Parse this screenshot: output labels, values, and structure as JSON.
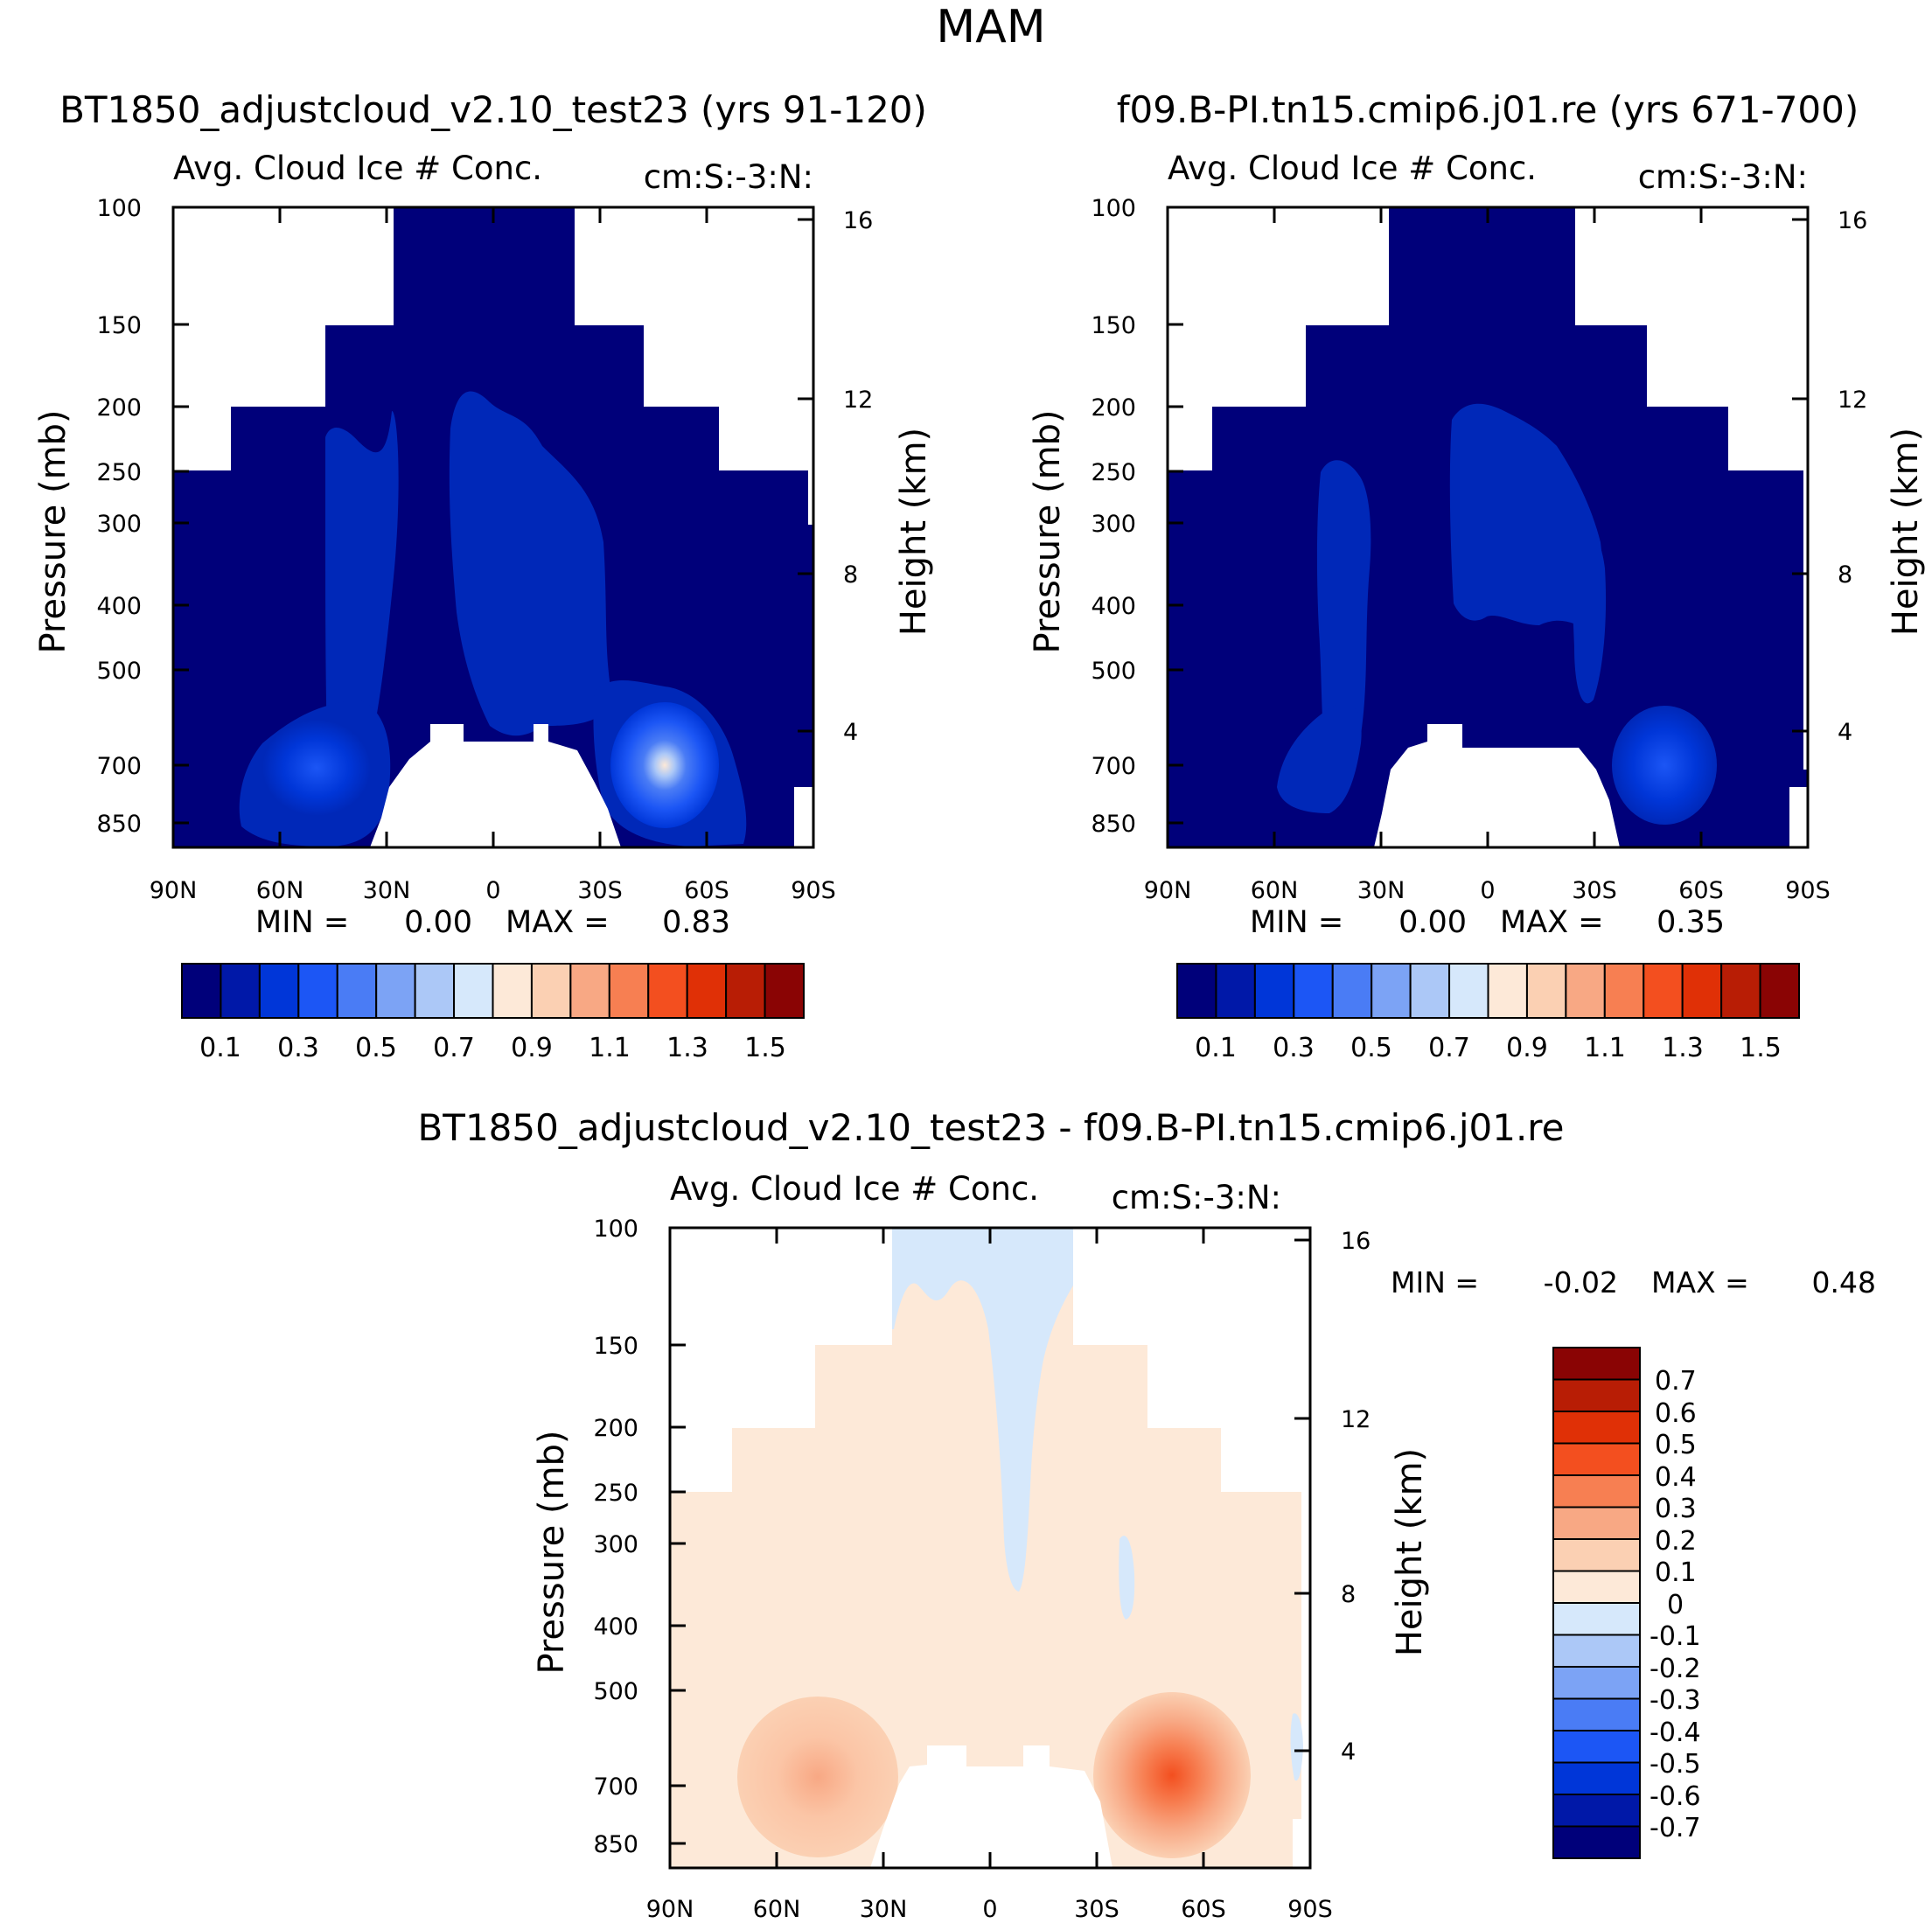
{
  "figure": {
    "title": "MAM"
  },
  "colors": {
    "abs_scale": [
      "#00007a",
      "#0018a8",
      "#0036d8",
      "#1c56f5",
      "#4a7cf5",
      "#7ca3f5",
      "#acc8f7",
      "#d6e8fb",
      "#fde9d8",
      "#fbd0b3",
      "#f8a884",
      "#f77f52",
      "#f34f1f",
      "#e03006",
      "#b81d05",
      "#8a0404"
    ],
    "diff_scale": [
      "#00007a",
      "#0018a8",
      "#0036d8",
      "#1c56f5",
      "#4a7cf5",
      "#7ca3f5",
      "#acc8f7",
      "#d6e8fb",
      "#fde9d8",
      "#fbd0b3",
      "#f8a884",
      "#f77f52",
      "#f34f1f",
      "#e03006",
      "#b81d05",
      "#8a0404"
    ]
  },
  "chart_data": [
    {
      "id": "panel-model",
      "type": "heatmap",
      "title": "BT1850_adjustcloud_v2.10_test23 (yrs 91-120)",
      "subtitle": "Avg. Cloud Ice # Conc.",
      "units": "cm:S:-3:N:",
      "xlabel": "",
      "ylabel": "Pressure (mb)",
      "ylabel_right": "Height (km)",
      "x_ticks": [
        "90N",
        "60N",
        "30N",
        "0",
        "30S",
        "60S",
        "90S"
      ],
      "y_ticks": [
        "100",
        "150",
        "200",
        "250",
        "300",
        "400",
        "500",
        "700",
        "850"
      ],
      "y_ticks_right": [
        "16",
        "12",
        "8",
        "4"
      ],
      "min_label": "MIN =",
      "min_value": "0.00",
      "max_label": "MAX =",
      "max_value": "0.83",
      "colorbar_labels": [
        "0.1",
        "0.3",
        "0.5",
        "0.7",
        "0.9",
        "1.1",
        "1.3",
        "1.5"
      ],
      "zlim": [
        0,
        1.6
      ]
    },
    {
      "id": "panel-control",
      "type": "heatmap",
      "title": "f09.B-PI.tn15.cmip6.j01.re (yrs 671-700)",
      "subtitle": "Avg. Cloud Ice # Conc.",
      "units": "cm:S:-3:N:",
      "xlabel": "",
      "ylabel": "Pressure (mb)",
      "ylabel_right": "Height (km)",
      "x_ticks": [
        "90N",
        "60N",
        "30N",
        "0",
        "30S",
        "60S",
        "90S"
      ],
      "y_ticks": [
        "100",
        "150",
        "200",
        "250",
        "300",
        "400",
        "500",
        "700",
        "850"
      ],
      "y_ticks_right": [
        "16",
        "12",
        "8",
        "4"
      ],
      "min_label": "MIN =",
      "min_value": "0.00",
      "max_label": "MAX =",
      "max_value": "0.35",
      "colorbar_labels": [
        "0.1",
        "0.3",
        "0.5",
        "0.7",
        "0.9",
        "1.1",
        "1.3",
        "1.5"
      ],
      "zlim": [
        0,
        1.6
      ]
    },
    {
      "id": "panel-diff",
      "type": "heatmap",
      "title": "BT1850_adjustcloud_v2.10_test23 - f09.B-PI.tn15.cmip6.j01.re",
      "subtitle": "Avg. Cloud Ice # Conc.",
      "units": "cm:S:-3:N:",
      "xlabel": "",
      "ylabel": "Pressure (mb)",
      "ylabel_right": "Height (km)",
      "x_ticks": [
        "90N",
        "60N",
        "30N",
        "0",
        "30S",
        "60S",
        "90S"
      ],
      "y_ticks": [
        "100",
        "150",
        "200",
        "250",
        "300",
        "400",
        "500",
        "700",
        "850"
      ],
      "y_ticks_right": [
        "16",
        "12",
        "8",
        "4"
      ],
      "min_label": "MIN =",
      "min_value": "-0.02",
      "max_label": "MAX =",
      "max_value": "0.48",
      "colorbar_labels": [
        "0.7",
        "0.6",
        "0.5",
        "0.4",
        "0.3",
        "0.2",
        "0.1",
        "0",
        "-0.1",
        "-0.2",
        "-0.3",
        "-0.4",
        "-0.5",
        "-0.6",
        "-0.7"
      ],
      "zlim": [
        -0.8,
        0.8
      ]
    }
  ]
}
